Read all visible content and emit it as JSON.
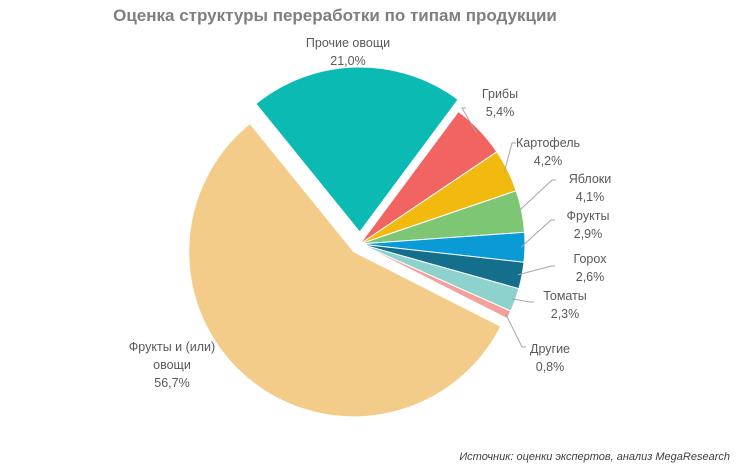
{
  "chart_data": {
    "type": "pie",
    "title": "Оценка структуры переработки по типам продукции",
    "source": "Источник: оценки экспертов, анализ MegaResearch",
    "categories": [
      "Прочие овощи",
      "Грибы",
      "Картофель",
      "Яблоки",
      "Фрукты",
      "Горох",
      "Томаты",
      "Другие",
      "Фрукты и (или) овощи"
    ],
    "values": [
      21.0,
      5.4,
      4.2,
      4.1,
      2.9,
      2.6,
      2.3,
      0.8,
      56.7
    ],
    "value_labels": [
      "21,0%",
      "5,4%",
      "4,2%",
      "4,1%",
      "2,9%",
      "2,6%",
      "2,3%",
      "0,8%",
      "56,7%"
    ],
    "colors": [
      "#0bbbb3",
      "#f26461",
      "#f2b90f",
      "#7dc774",
      "#0a9bd7",
      "#136f8c",
      "#8ed2cd",
      "#f4a19d",
      "#f4cc8a"
    ]
  }
}
